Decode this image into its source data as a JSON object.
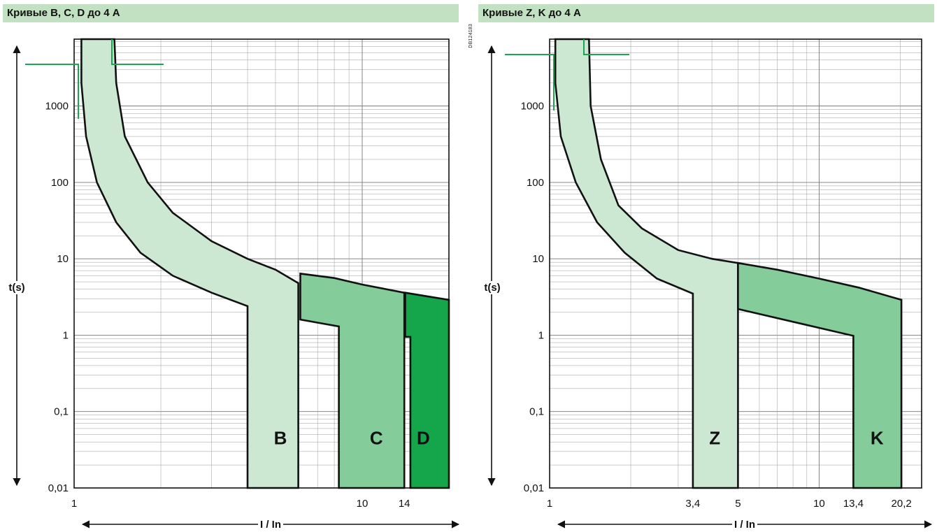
{
  "document_code": "DB124183",
  "chart_data": [
    {
      "type": "area",
      "title": "Кривые B, C, D до 4 A",
      "ylabel": "t(s)",
      "xlabel": "I / In",
      "x_scale": "log",
      "y_scale": "log",
      "xlim": [
        1,
        20
      ],
      "ylim": [
        0.01,
        7500
      ],
      "grid": true,
      "yticks": [
        {
          "v": 1000,
          "label": "1000"
        },
        {
          "v": 100,
          "label": "100"
        },
        {
          "v": 10,
          "label": "10"
        },
        {
          "v": 1,
          "label": "1"
        },
        {
          "v": 0.1,
          "label": "0,1"
        },
        {
          "v": 0.01,
          "label": "0,01"
        }
      ],
      "xticks": [
        {
          "v": 1,
          "label": "1"
        },
        {
          "v": 10,
          "label": "10"
        },
        {
          "v": 14,
          "label": "14"
        }
      ],
      "series": [
        {
          "name": "B",
          "color": "#cde8d2",
          "label_at": [
            5.2,
            0.045
          ],
          "points": [
            [
              1.06,
              7500
            ],
            [
              1.06,
              2000
            ],
            [
              1.1,
              400
            ],
            [
              1.2,
              100
            ],
            [
              1.4,
              30
            ],
            [
              1.7,
              12
            ],
            [
              2.2,
              6
            ],
            [
              3,
              3.6
            ],
            [
              4,
              2.4
            ],
            [
              4,
              0.01
            ],
            [
              6,
              0.01
            ],
            [
              6,
              4.8
            ],
            [
              5,
              7.2
            ],
            [
              4,
              10
            ],
            [
              3,
              17
            ],
            [
              2.2,
              40
            ],
            [
              1.8,
              100
            ],
            [
              1.5,
              400
            ],
            [
              1.4,
              2000
            ],
            [
              1.38,
              7500
            ]
          ]
        },
        {
          "name": "C",
          "color": "#84cc9a",
          "label_at": [
            11.2,
            0.045
          ],
          "points": [
            [
              6.1,
              1.6
            ],
            [
              8.3,
              1.3
            ],
            [
              8.3,
              0.01
            ],
            [
              14,
              0.01
            ],
            [
              14,
              3.6
            ],
            [
              10,
              4.6
            ],
            [
              8,
              5.6
            ],
            [
              6.1,
              6.4
            ]
          ]
        },
        {
          "name": "D",
          "color": "#15a54a",
          "label_at": [
            16.3,
            0.045
          ],
          "points": [
            [
              14.1,
              0.95
            ],
            [
              14.7,
              0.95
            ],
            [
              14.7,
              0.01
            ],
            [
              20,
              0.01
            ],
            [
              20,
              2.9
            ],
            [
              17,
              3.2
            ],
            [
              14.1,
              3.6
            ]
          ]
        }
      ]
    },
    {
      "type": "area",
      "title": "Кривые Z, K до 4 A",
      "ylabel": "t(s)",
      "xlabel": "I / In",
      "x_scale": "log",
      "y_scale": "log",
      "xlim": [
        1,
        24
      ],
      "ylim": [
        0.01,
        7500
      ],
      "grid": true,
      "yticks": [
        {
          "v": 1000,
          "label": "1000"
        },
        {
          "v": 100,
          "label": "100"
        },
        {
          "v": 10,
          "label": "10"
        },
        {
          "v": 1,
          "label": "1"
        },
        {
          "v": 0.1,
          "label": "0,1"
        },
        {
          "v": 0.01,
          "label": "0,01"
        }
      ],
      "xticks": [
        {
          "v": 1,
          "label": "1"
        },
        {
          "v": 3.4,
          "label": "3,4"
        },
        {
          "v": 5,
          "label": "5"
        },
        {
          "v": 10,
          "label": "10"
        },
        {
          "v": 13.4,
          "label": "13,4"
        },
        {
          "v": 20.2,
          "label": "20,2"
        }
      ],
      "series": [
        {
          "name": "Z",
          "color": "#cde8d2",
          "label_at": [
            4.1,
            0.045
          ],
          "points": [
            [
              1.05,
              7500
            ],
            [
              1.05,
              2000
            ],
            [
              1.1,
              400
            ],
            [
              1.25,
              100
            ],
            [
              1.5,
              30
            ],
            [
              1.9,
              12
            ],
            [
              2.5,
              5.5
            ],
            [
              3.4,
              3.5
            ],
            [
              3.4,
              0.01
            ],
            [
              5,
              0.01
            ],
            [
              5,
              8.8
            ],
            [
              4,
              10
            ],
            [
              3,
              13
            ],
            [
              2.2,
              25
            ],
            [
              1.8,
              50
            ],
            [
              1.55,
              200
            ],
            [
              1.42,
              1000
            ],
            [
              1.4,
              7500
            ]
          ]
        },
        {
          "name": "K",
          "color": "#84cc9a",
          "label_at": [
            16.4,
            0.045
          ],
          "points": [
            [
              5,
              2.2
            ],
            [
              13.4,
              0.98
            ],
            [
              13.4,
              0.01
            ],
            [
              20.2,
              0.01
            ],
            [
              20.2,
              2.9
            ],
            [
              14,
              4.2
            ],
            [
              10,
              5.5
            ],
            [
              7,
              7.2
            ],
            [
              5,
              8.8
            ]
          ]
        }
      ]
    }
  ]
}
